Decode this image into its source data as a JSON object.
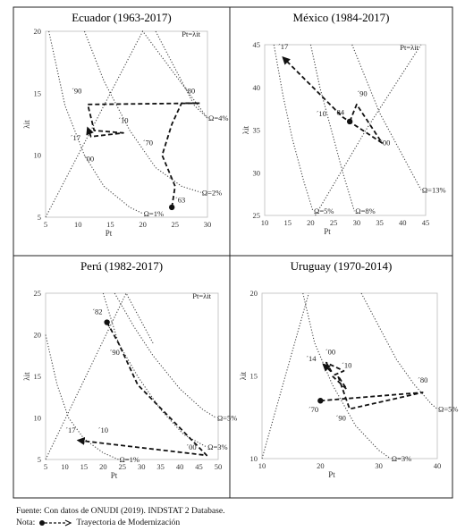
{
  "chart_data": [
    {
      "type": "line",
      "title": "Ecuador (1963-2017)",
      "xlabel": "Pt",
      "ylabel": "λit",
      "xlim": [
        5,
        30
      ],
      "ylim": [
        5,
        20
      ],
      "xticks": [
        5,
        10,
        15,
        20,
        25,
        30
      ],
      "yticks": [
        5,
        10,
        15,
        20
      ],
      "diagonal_label": "Pt=λit",
      "iso_curves": [
        {
          "label": "Ω=1%",
          "points": [
            [
              5.5,
              20
            ],
            [
              8,
              14
            ],
            [
              11,
              10
            ],
            [
              14,
              7.5
            ],
            [
              18,
              5.8
            ],
            [
              20,
              5.3
            ]
          ]
        },
        {
          "label": "Ω=2%",
          "points": [
            [
              11,
              20
            ],
            [
              14,
              16
            ],
            [
              18,
              12
            ],
            [
              22,
              9
            ],
            [
              26,
              7.5
            ],
            [
              29,
              7
            ]
          ]
        },
        {
          "label": "Ω=4%",
          "points": [
            [
              22,
              20
            ],
            [
              24,
              18
            ],
            [
              26,
              16
            ],
            [
              28,
              14
            ],
            [
              30,
              13
            ]
          ]
        }
      ],
      "diagonal": [
        [
          5,
          5
        ],
        [
          20,
          20
        ],
        [
          30,
          13
        ]
      ],
      "trajectory": [
        [
          24.5,
          5.8
        ],
        [
          25,
          7.5
        ],
        [
          23,
          10
        ],
        [
          24.5,
          12.5
        ],
        [
          26,
          14.2
        ],
        [
          28.8,
          14.2
        ],
        [
          11.5,
          14.1
        ],
        [
          12.5,
          12
        ],
        [
          17,
          11.8
        ],
        [
          12,
          11.5
        ],
        [
          11.5,
          12.2
        ]
      ],
      "annotations": [
        {
          "text": "´63",
          "x": 25.8,
          "y": 6.2
        },
        {
          "text": "´70",
          "x": 20.8,
          "y": 10.8
        },
        {
          "text": "´80",
          "x": 27.3,
          "y": 15
        },
        {
          "text": "´90",
          "x": 9.8,
          "y": 15
        },
        {
          "text": "´10",
          "x": 17,
          "y": 12.6
        },
        {
          "text": "´17",
          "x": 9.6,
          "y": 11.2
        },
        {
          "text": "´00",
          "x": 11.7,
          "y": 9.5
        }
      ]
    },
    {
      "type": "line",
      "title": "México (1984-2017)",
      "xlabel": "Pt",
      "ylabel": "λit",
      "xlim": [
        10,
        45
      ],
      "ylim": [
        25,
        45
      ],
      "xticks": [
        10,
        15,
        20,
        25,
        30,
        35,
        40,
        45
      ],
      "yticks": [
        25,
        30,
        35,
        40,
        45
      ],
      "diagonal_label": "Pt=λit",
      "iso_curves": [
        {
          "label": "Ω=5%",
          "points": [
            [
              12,
              45
            ],
            [
              14,
              39
            ],
            [
              16,
              34
            ],
            [
              18.5,
              29
            ],
            [
              20.5,
              25.5
            ]
          ]
        },
        {
          "label": "Ω=8%",
          "points": [
            [
              20,
              45
            ],
            [
              22,
              40
            ],
            [
              24.5,
              35
            ],
            [
              27,
              30
            ],
            [
              29.5,
              25.5
            ]
          ]
        },
        {
          "label": "Ω=13%",
          "points": [
            [
              29,
              45
            ],
            [
              32,
              41
            ],
            [
              35,
              37
            ],
            [
              39,
              33
            ],
            [
              42,
              30
            ],
            [
              44,
              28
            ]
          ]
        }
      ],
      "diagonal": [
        [
          21,
          25
        ],
        [
          32,
          35
        ],
        [
          44,
          45
        ]
      ],
      "trajectory": [
        [
          28.5,
          36
        ],
        [
          30,
          38
        ],
        [
          35.5,
          33.5
        ],
        [
          27,
          36.5
        ],
        [
          14,
          43.5
        ]
      ],
      "annotations": [
        {
          "text": "´84",
          "x": 26.2,
          "y": 36.8
        },
        {
          "text": "´90",
          "x": 31.2,
          "y": 39
        },
        {
          "text": "´00",
          "x": 36.2,
          "y": 33.2
        },
        {
          "text": "´10",
          "x": 22.3,
          "y": 36.6
        },
        {
          "text": "´17",
          "x": 14,
          "y": 44.5
        }
      ]
    },
    {
      "type": "line",
      "title": "Perú (1982-2017)",
      "xlabel": "Pt",
      "ylabel": "λit",
      "xlim": [
        5,
        50
      ],
      "ylim": [
        5,
        25
      ],
      "xticks": [
        5,
        10,
        15,
        20,
        25,
        30,
        35,
        40,
        45,
        50
      ],
      "yticks": [
        5,
        10,
        15,
        20,
        25
      ],
      "diagonal_label": "Pt=λit",
      "iso_curves": [
        {
          "label": "Ω=1%",
          "points": [
            [
              5,
              20
            ],
            [
              8,
              14
            ],
            [
              11,
              10
            ],
            [
              15,
              7.5
            ],
            [
              20,
              5.8
            ],
            [
              24,
              5
            ]
          ]
        },
        {
          "label": "Ω=3%",
          "points": [
            [
              20,
              25
            ],
            [
              24,
              19
            ],
            [
              29,
              15
            ],
            [
              35,
              11
            ],
            [
              41,
              8
            ],
            [
              47,
              6.5
            ]
          ]
        },
        {
          "label": "Ω=5%",
          "points": [
            [
              23,
              25
            ],
            [
              28,
              21
            ],
            [
              33,
              17.5
            ],
            [
              40,
              13.5
            ],
            [
              46,
              11
            ],
            [
              49.5,
              10
            ]
          ]
        }
      ],
      "diagonal": [
        [
          5,
          5
        ],
        [
          26,
          25
        ],
        [
          33,
          19
        ]
      ],
      "trajectory": [
        [
          21,
          21.5
        ],
        [
          24,
          19
        ],
        [
          29,
          14
        ],
        [
          47,
          5.5
        ],
        [
          13.5,
          7.3
        ]
      ],
      "annotations": [
        {
          "text": "´82",
          "x": 18.5,
          "y": 22.5
        },
        {
          "text": "´90",
          "x": 23,
          "y": 17.6
        },
        {
          "text": "´00",
          "x": 43,
          "y": 6.2
        },
        {
          "text": "´10",
          "x": 20,
          "y": 8.2
        },
        {
          "text": "´17",
          "x": 11.5,
          "y": 8.2
        }
      ]
    },
    {
      "type": "line",
      "title": "Uruguay (1970-2014)",
      "xlabel": "Pt",
      "ylabel": "λit",
      "xlim": [
        10,
        40
      ],
      "ylim": [
        10,
        20
      ],
      "xticks": [
        10,
        20,
        30,
        40
      ],
      "yticks": [
        10,
        15,
        20
      ],
      "iso_curves": [
        {
          "label": "Ω=3%",
          "points": [
            [
              17,
              20
            ],
            [
              19,
              17
            ],
            [
              22,
              14.5
            ],
            [
              26,
              12
            ],
            [
              30,
              10.5
            ],
            [
              32,
              10
            ]
          ]
        },
        {
          "label": "Ω=5%",
          "points": [
            [
              27,
              20
            ],
            [
              30,
              18
            ],
            [
              33,
              16
            ],
            [
              36,
              14.5
            ],
            [
              39,
              13.3
            ],
            [
              40,
              13
            ]
          ]
        }
      ],
      "diagonal": [
        [
          10,
          10
        ],
        [
          18,
          20
        ]
      ],
      "trajectory": [
        [
          20,
          13.5
        ],
        [
          37.5,
          14
        ],
        [
          25,
          13
        ],
        [
          23,
          15
        ],
        [
          24.5,
          14.2
        ],
        [
          22,
          15
        ],
        [
          24,
          15.3
        ],
        [
          21,
          15.8
        ],
        [
          22,
          15.2
        ],
        [
          20.5,
          15.7
        ]
      ],
      "annotations": [
        {
          "text": "´70",
          "x": 18.8,
          "y": 12.8
        },
        {
          "text": "´80",
          "x": 37.5,
          "y": 14.6
        },
        {
          "text": "´90",
          "x": 23.5,
          "y": 12.3
        },
        {
          "text": "´00",
          "x": 21.7,
          "y": 16.3
        },
        {
          "text": "´10",
          "x": 24.5,
          "y": 15.5
        },
        {
          "text": "´14",
          "x": 18.4,
          "y": 15.9
        }
      ]
    }
  ],
  "footer": {
    "source": "Fuente: Con datos de ONUDI (2019). INDSTAT 2 Database.",
    "note_label": "Nota:",
    "note_text": "Trayectoria de Modernización"
  }
}
